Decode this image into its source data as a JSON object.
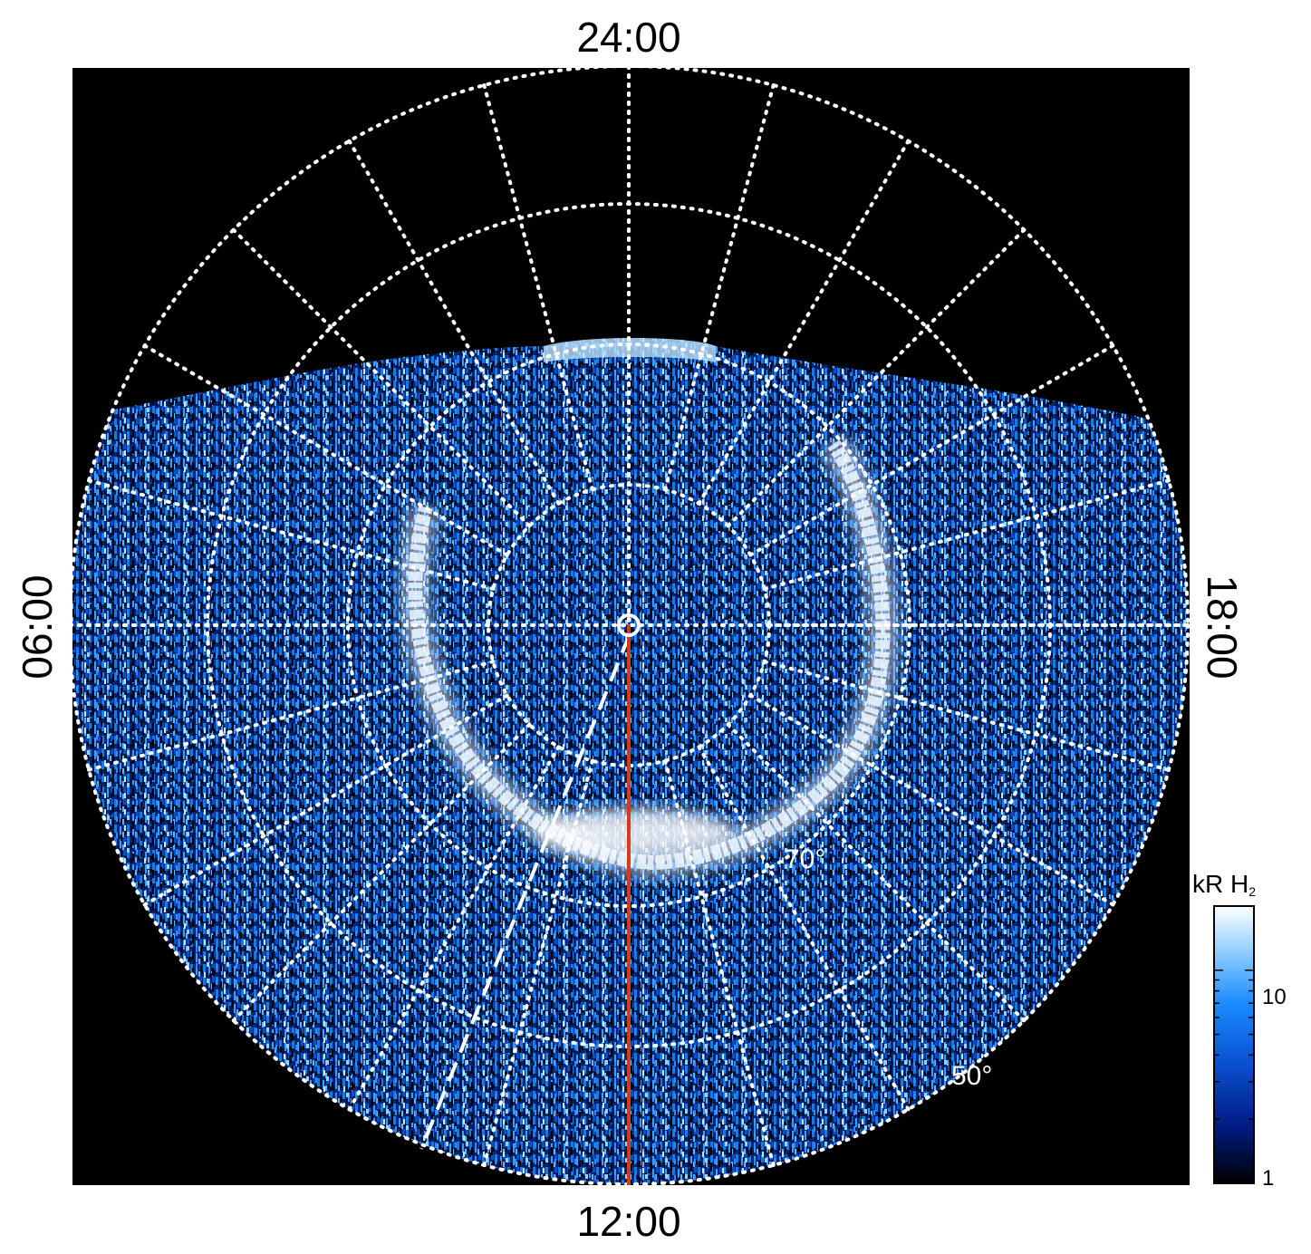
{
  "map": {
    "local_time_labels": {
      "top": "24:00",
      "bottom": "12:00",
      "left": "06:00",
      "right": "18:00"
    },
    "latitude_labels": {
      "inner": "70°",
      "outer": "50°"
    }
  },
  "colorbar": {
    "title_main": "kR H",
    "title_sub": "2",
    "scale": "log",
    "range": [
      1,
      20
    ],
    "ticks": [
      {
        "value": 10,
        "label": "10"
      },
      {
        "value": 1,
        "label": "1"
      }
    ],
    "colors": [
      "#000000",
      "#001a80",
      "#0a55d6",
      "#1a8cff",
      "#9ad2ff",
      "#ffffff"
    ]
  },
  "colors": {
    "background": "#000000",
    "grid": "#ffffff",
    "meridian_line": "#d23c1e",
    "noise_dark": "#0d3fb8",
    "noise_light": "#3aa0ff"
  }
}
